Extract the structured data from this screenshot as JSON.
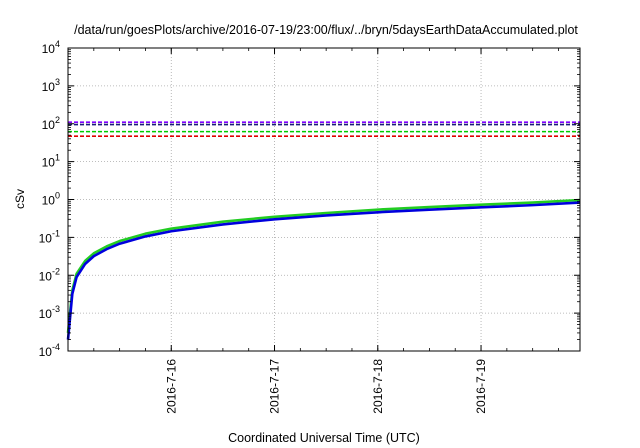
{
  "chart_data": {
    "type": "line",
    "title": "/data/run/goesPlots/archive/2016-07-19/23:00/flux/../bryn/5daysEarthDataAccumulated.plot",
    "xlabel": "Coordinated Universal Time (UTC)",
    "ylabel": "cSv",
    "y_scale": "log",
    "ylim": [
      0.0001,
      10000
    ],
    "y_ticks": [
      {
        "base": "10",
        "exp": "-4",
        "value": 0.0001
      },
      {
        "base": "10",
        "exp": "-3",
        "value": 0.001
      },
      {
        "base": "10",
        "exp": "-2",
        "value": 0.01
      },
      {
        "base": "10",
        "exp": "-1",
        "value": 0.1
      },
      {
        "base": "10",
        "exp": "0",
        "value": 1
      },
      {
        "base": "10",
        "exp": "1",
        "value": 10
      },
      {
        "base": "10",
        "exp": "2",
        "value": 100
      },
      {
        "base": "10",
        "exp": "3",
        "value": 1000
      },
      {
        "base": "10",
        "exp": "4",
        "value": 10000
      }
    ],
    "xlim": [
      "2016-07-15 00:00",
      "2016-07-19 23:00"
    ],
    "x_ticks": [
      {
        "label": "2016-7-16",
        "value": "2016-07-16 00:00"
      },
      {
        "label": "2016-7-17",
        "value": "2016-07-17 00:00"
      },
      {
        "label": "2016-7-18",
        "value": "2016-07-18 00:00"
      },
      {
        "label": "2016-7-19",
        "value": "2016-07-19 00:00"
      }
    ],
    "grid": true,
    "legend": "none",
    "threshold_lines": [
      {
        "color": "#8000ff",
        "value": 110,
        "style": "dashed"
      },
      {
        "color": "#1a1a7a",
        "value": 95,
        "style": "dashed"
      },
      {
        "color": "#00cc00",
        "value": 62,
        "style": "dashed"
      },
      {
        "color": "#e00000",
        "value": 47,
        "style": "dashed"
      }
    ],
    "series": [
      {
        "color": "#22cc22",
        "points": [
          [
            "2016-07-15 00:00",
            0.0003
          ],
          [
            "2016-07-15 01:00",
            0.004
          ],
          [
            "2016-07-15 02:00",
            0.011
          ],
          [
            "2016-07-15 04:00",
            0.024
          ],
          [
            "2016-07-15 06:00",
            0.038
          ],
          [
            "2016-07-15 09:00",
            0.058
          ],
          [
            "2016-07-15 12:00",
            0.08
          ],
          [
            "2016-07-15 18:00",
            0.125
          ],
          [
            "2016-07-16 00:00",
            0.17
          ],
          [
            "2016-07-16 12:00",
            0.26
          ],
          [
            "2016-07-17 00:00",
            0.35
          ],
          [
            "2016-07-17 12:00",
            0.44
          ],
          [
            "2016-07-18 00:00",
            0.54
          ],
          [
            "2016-07-18 12:00",
            0.63
          ],
          [
            "2016-07-19 00:00",
            0.73
          ],
          [
            "2016-07-19 12:00",
            0.83
          ],
          [
            "2016-07-19 23:00",
            0.97
          ]
        ]
      },
      {
        "color": "#0000dd",
        "points": [
          [
            "2016-07-15 00:00",
            0.0002
          ],
          [
            "2016-07-15 01:00",
            0.0032
          ],
          [
            "2016-07-15 02:00",
            0.009
          ],
          [
            "2016-07-15 04:00",
            0.02
          ],
          [
            "2016-07-15 06:00",
            0.032
          ],
          [
            "2016-07-15 09:00",
            0.049
          ],
          [
            "2016-07-15 12:00",
            0.068
          ],
          [
            "2016-07-15 18:00",
            0.106
          ],
          [
            "2016-07-16 00:00",
            0.145
          ],
          [
            "2016-07-16 12:00",
            0.22
          ],
          [
            "2016-07-17 00:00",
            0.3
          ],
          [
            "2016-07-17 12:00",
            0.38
          ],
          [
            "2016-07-18 00:00",
            0.46
          ],
          [
            "2016-07-18 12:00",
            0.54
          ],
          [
            "2016-07-19 00:00",
            0.62
          ],
          [
            "2016-07-19 12:00",
            0.71
          ],
          [
            "2016-07-19 23:00",
            0.83
          ]
        ]
      }
    ]
  }
}
